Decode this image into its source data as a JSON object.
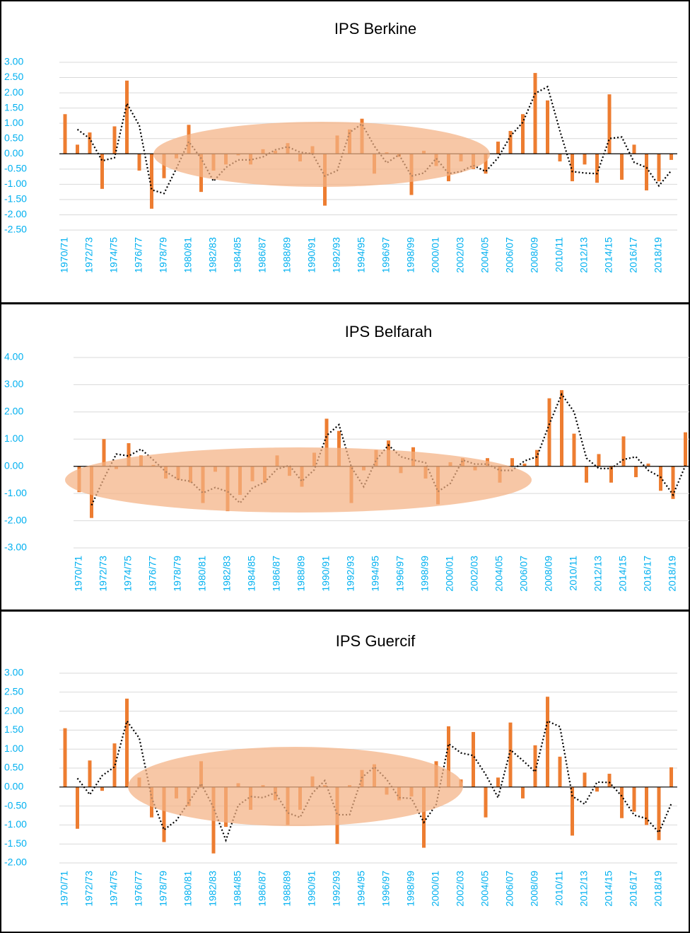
{
  "chart_data": [
    {
      "type": "bar",
      "title": "IPS Berkine",
      "categories": [
        "1970/71",
        null,
        "1972/73",
        null,
        "1974/75",
        null,
        "1976/77",
        null,
        "1978/79",
        null,
        "1980/81",
        null,
        "1982/83",
        null,
        "1984/85",
        null,
        "1986/87",
        null,
        "1988/89",
        null,
        "1990/91",
        null,
        "1992/93",
        null,
        "1994/95",
        null,
        "1996/97",
        null,
        "1998/99",
        null,
        "2000/01",
        null,
        "2002/03",
        null,
        "2004/05",
        null,
        "2006/07",
        null,
        "2008/09",
        null,
        "2010/11",
        null,
        "2012/13",
        null,
        "2014/15",
        null,
        "2016/17",
        null,
        "2018/19",
        null
      ],
      "values": [
        1.3,
        0.3,
        0.7,
        -1.15,
        0.9,
        2.4,
        -0.55,
        -1.8,
        -0.8,
        -0.15,
        0.95,
        -1.25,
        -0.55,
        -0.35,
        -0.05,
        -0.35,
        0.15,
        0.1,
        0.35,
        -0.25,
        0.25,
        -1.7,
        0.6,
        0.8,
        1.15,
        -0.65,
        0.05,
        -0.1,
        -1.35,
        0.1,
        -0.4,
        -0.9,
        -0.25,
        -0.5,
        -0.65,
        0.4,
        0.75,
        1.3,
        2.65,
        1.75,
        -0.25,
        -0.9,
        -0.35,
        -0.95,
        1.95,
        -0.85,
        0.3,
        -1.2,
        -0.9,
        -0.2
      ],
      "trend": [
        null,
        0.8,
        0.5,
        -0.23,
        -0.13,
        1.65,
        0.93,
        -1.18,
        -1.3,
        -0.48,
        0.4,
        -0.15,
        -0.9,
        -0.45,
        -0.2,
        -0.2,
        -0.1,
        0.13,
        0.23,
        0.05,
        0,
        -0.73,
        -0.55,
        0.7,
        0.98,
        0.25,
        -0.3,
        -0.03,
        -0.73,
        -0.63,
        -0.15,
        -0.65,
        -0.58,
        -0.38,
        -0.58,
        -0.13,
        0.58,
        1.03,
        1.98,
        2.2,
        0.75,
        -0.58,
        -0.63,
        -0.65,
        0.5,
        0.55,
        -0.28,
        -0.45,
        -1.05,
        -0.55
      ],
      "color": "#ed7d31",
      "trend_color": "#000000",
      "grid": true,
      "ylim": [
        -2.5,
        3
      ],
      "yticks": [
        {
          "value": -2.5,
          "label": "-2.50"
        },
        {
          "value": -2,
          "label": "-2.00"
        },
        {
          "value": -1.5,
          "label": "-1.50"
        },
        {
          "value": -1,
          "label": "-1.00"
        },
        {
          "value": -0.5,
          "label": "-0.50"
        },
        {
          "value": 0,
          "label": "0.00"
        },
        {
          "value": 0.5,
          "label": "0.50"
        },
        {
          "value": 1,
          "label": "1.00"
        },
        {
          "value": 1.5,
          "label": "1.50"
        },
        {
          "value": 2,
          "label": "2.00"
        },
        {
          "value": 2.5,
          "label": "2.50"
        },
        {
          "value": 3,
          "label": "3.00"
        }
      ]
    },
    {
      "type": "bar",
      "title": "IPS Belfarah",
      "categories": [
        "1970/71",
        null,
        "1972/73",
        null,
        "1974/75",
        null,
        "1976/77",
        null,
        "1978/79",
        null,
        "1980/81",
        null,
        "1982/83",
        null,
        "1984/85",
        null,
        "1986/87",
        null,
        "1988/89",
        null,
        "1990/91",
        null,
        "1992/93",
        null,
        "1994/95",
        null,
        "1996/97",
        null,
        "1998/99",
        null,
        "2000/01",
        null,
        "2002/03",
        null,
        "2004/05",
        null,
        "2006/07",
        null,
        "2008/09",
        null,
        "2010/11",
        null,
        "2012/13",
        null,
        "2014/15",
        null,
        "2016/17",
        null,
        "2018/19",
        null
      ],
      "values": [
        -0.95,
        -1.9,
        1.0,
        -0.1,
        0.85,
        0.4,
        0.05,
        -0.45,
        -0.5,
        -0.6,
        -1.35,
        -0.2,
        -1.65,
        -1.05,
        -0.55,
        -0.6,
        0.4,
        -0.35,
        -0.75,
        0.5,
        1.75,
        1.3,
        -1.35,
        -0.15,
        0.6,
        0.95,
        -0.25,
        0.7,
        -0.45,
        -1.4,
        0.15,
        0.3,
        -0.15,
        0.3,
        -0.6,
        0.3,
        0.1,
        0.6,
        2.5,
        2.8,
        1.2,
        -0.6,
        0.45,
        -0.6,
        1.1,
        -0.4,
        0.1,
        -0.9,
        -1.2,
        1.25
      ],
      "trend": [
        null,
        -1.43,
        -0.45,
        0.45,
        0.38,
        0.63,
        0.23,
        -0.2,
        -0.48,
        -0.55,
        -0.98,
        -0.78,
        -0.93,
        -1.35,
        -0.8,
        -0.58,
        -0.1,
        0.03,
        -0.55,
        -0.13,
        1.13,
        1.53,
        -0.03,
        -0.75,
        0.23,
        0.78,
        0.35,
        0.23,
        0.13,
        -0.93,
        -0.63,
        0.23,
        0.08,
        0.08,
        -0.15,
        -0.15,
        0.2,
        0.35,
        1.55,
        2.65,
        2.0,
        0.3,
        -0.08,
        -0.08,
        0.25,
        0.35,
        -0.15,
        -0.4,
        -1.05,
        0.03
      ],
      "color": "#ed7d31",
      "trend_color": "#000000",
      "grid": true,
      "ylim": [
        -3,
        4
      ],
      "yticks": [
        {
          "value": -3,
          "label": "-3.00"
        },
        {
          "value": -2,
          "label": "-2.00"
        },
        {
          "value": -1,
          "label": "-1.00"
        },
        {
          "value": 0,
          "label": "0.00"
        },
        {
          "value": 1,
          "label": "1.00"
        },
        {
          "value": 2,
          "label": "2.00"
        },
        {
          "value": 3,
          "label": "3.00"
        },
        {
          "value": 4,
          "label": "4.00"
        }
      ]
    },
    {
      "type": "bar",
      "title": "IPS Guercif",
      "categories": [
        "1970/71",
        null,
        "1972/73",
        null,
        "1974/75",
        null,
        "1976/77",
        null,
        "1978/79",
        null,
        "1980/81",
        null,
        "1982/83",
        null,
        "1984/85",
        null,
        "1986/87",
        null,
        "1988/89",
        null,
        "1990/91",
        null,
        "1992/93",
        null,
        "1994/95",
        null,
        "1996/97",
        null,
        "1998/99",
        null,
        "2000/01",
        null,
        "2002/03",
        null,
        "2004/05",
        null,
        "2006/07",
        null,
        "2008/09",
        null,
        "2010/11",
        null,
        "2012/13",
        null,
        "2014/15",
        null,
        "2016/17",
        null,
        "2018/19",
        null
      ],
      "values": [
        1.55,
        -1.1,
        0.7,
        -0.1,
        1.15,
        2.33,
        0.25,
        -0.8,
        -1.45,
        -0.3,
        -0.5,
        0.68,
        -1.75,
        -1.05,
        0.1,
        -0.6,
        0.05,
        -0.35,
        -1.0,
        -0.6,
        0.28,
        0.05,
        -1.5,
        0.05,
        0.45,
        0.6,
        -0.2,
        -0.35,
        -0.25,
        -1.6,
        0.68,
        1.6,
        0.2,
        1.45,
        -0.8,
        0.25,
        1.7,
        -0.3,
        1.1,
        2.38,
        0.8,
        -1.28,
        0.38,
        -0.12,
        0.35,
        -0.82,
        -0.65,
        -1.0,
        -1.4,
        0.52
      ],
      "trend": [
        null,
        0.23,
        -0.2,
        0.3,
        0.53,
        1.74,
        1.29,
        -0.28,
        -1.13,
        -0.88,
        -0.4,
        0.09,
        -0.54,
        -1.4,
        -0.48,
        -0.25,
        -0.28,
        -0.15,
        -0.68,
        -0.8,
        -0.16,
        0.17,
        -0.73,
        -0.73,
        0.25,
        0.53,
        0.2,
        -0.28,
        -0.3,
        -0.93,
        -0.46,
        1.14,
        0.9,
        0.83,
        0.33,
        -0.28,
        0.98,
        0.7,
        0.4,
        1.74,
        1.59,
        -0.24,
        -0.45,
        0.13,
        0.12,
        -0.24,
        -0.74,
        -0.83,
        -1.2,
        -0.44
      ],
      "color": "#ed7d31",
      "trend_color": "#000000",
      "grid": true,
      "ylim": [
        -2,
        3
      ],
      "yticks": [
        {
          "value": -2,
          "label": "-2.00"
        },
        {
          "value": -1.5,
          "label": "-1.50"
        },
        {
          "value": -1,
          "label": "-1.00"
        },
        {
          "value": -0.5,
          "label": "-0.50"
        },
        {
          "value": 0,
          "label": "0.00"
        },
        {
          "value": 0.5,
          "label": "0.50"
        },
        {
          "value": 1,
          "label": "1.00"
        },
        {
          "value": 1.5,
          "label": "1.50"
        },
        {
          "value": 2,
          "label": "2.00"
        },
        {
          "value": 2.5,
          "label": "2.50"
        },
        {
          "value": 3,
          "label": "3.00"
        }
      ]
    }
  ]
}
